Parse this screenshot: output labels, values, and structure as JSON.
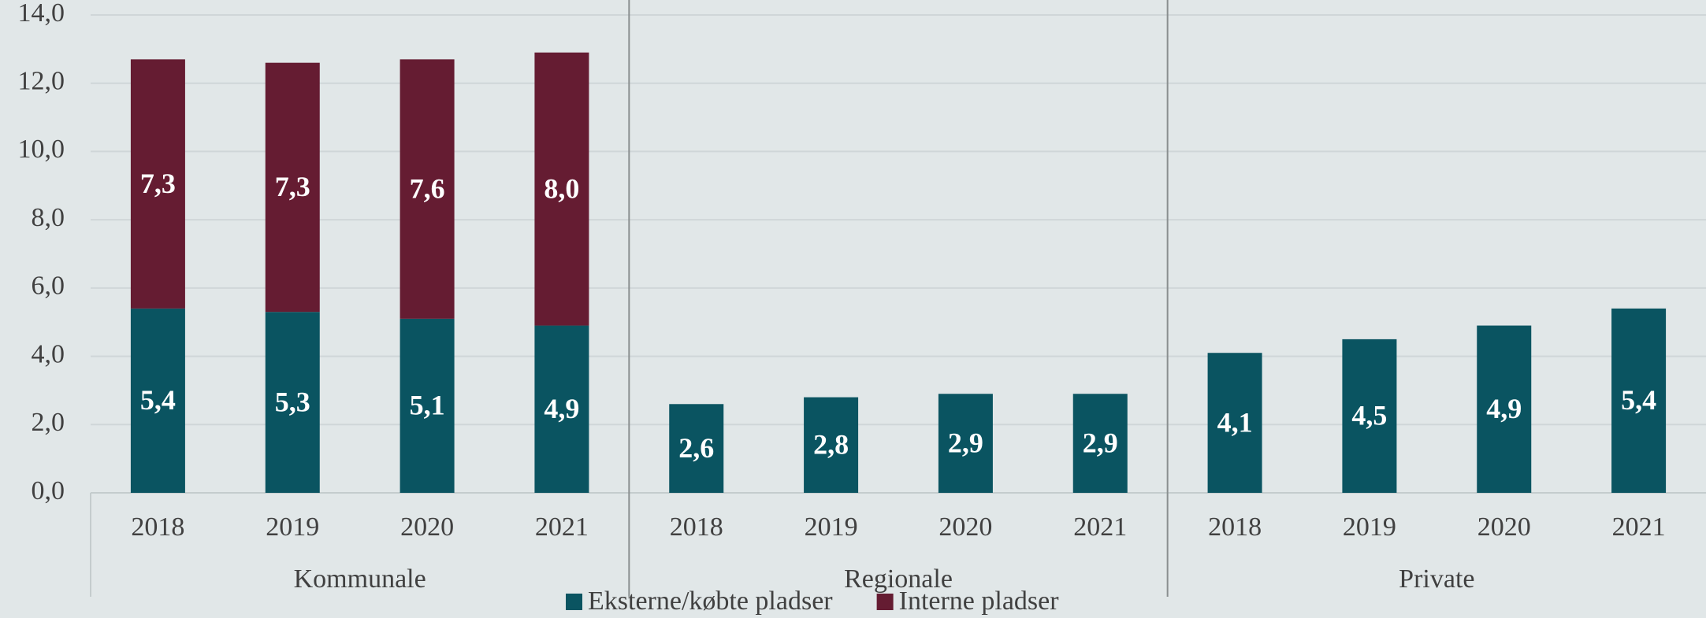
{
  "chart_data": {
    "type": "stacked-bar",
    "categories": [
      "2018",
      "2019",
      "2020",
      "2021",
      "2018",
      "2019",
      "2020",
      "2021",
      "2018",
      "2019",
      "2020",
      "2021"
    ],
    "groups": [
      "Kommunale",
      "Regionale",
      "Private"
    ],
    "series": [
      {
        "name": "Eksterne/købte pladser",
        "color": "#0a5461",
        "values": [
          5.4,
          5.3,
          5.1,
          4.9,
          2.6,
          2.8,
          2.9,
          2.9,
          4.1,
          4.5,
          4.9,
          5.4
        ],
        "value_labels": [
          "5,4",
          "5,3",
          "5,1",
          "4,9",
          "2,6",
          "2,8",
          "2,9",
          "2,9",
          "4,1",
          "4,5",
          "4,9",
          "5,4"
        ]
      },
      {
        "name": "Interne pladser",
        "color": "#651c32",
        "values": [
          7.3,
          7.3,
          7.6,
          8.0,
          null,
          null,
          null,
          null,
          null,
          null,
          null,
          null
        ],
        "value_labels": [
          "7,3",
          "7,3",
          "7,6",
          "8,0",
          null,
          null,
          null,
          null,
          null,
          null,
          null,
          null
        ]
      }
    ],
    "ylim": [
      0,
      14
    ],
    "yticks": [
      {
        "value": 0,
        "label": "0,0"
      },
      {
        "value": 2,
        "label": "2,0"
      },
      {
        "value": 4,
        "label": "4,0"
      },
      {
        "value": 6,
        "label": "6,0"
      },
      {
        "value": 8,
        "label": "8,0"
      },
      {
        "value": 10,
        "label": "10,0"
      },
      {
        "value": 12,
        "label": "12,0"
      },
      {
        "value": 14,
        "label": "14,0"
      }
    ],
    "grid": true
  }
}
